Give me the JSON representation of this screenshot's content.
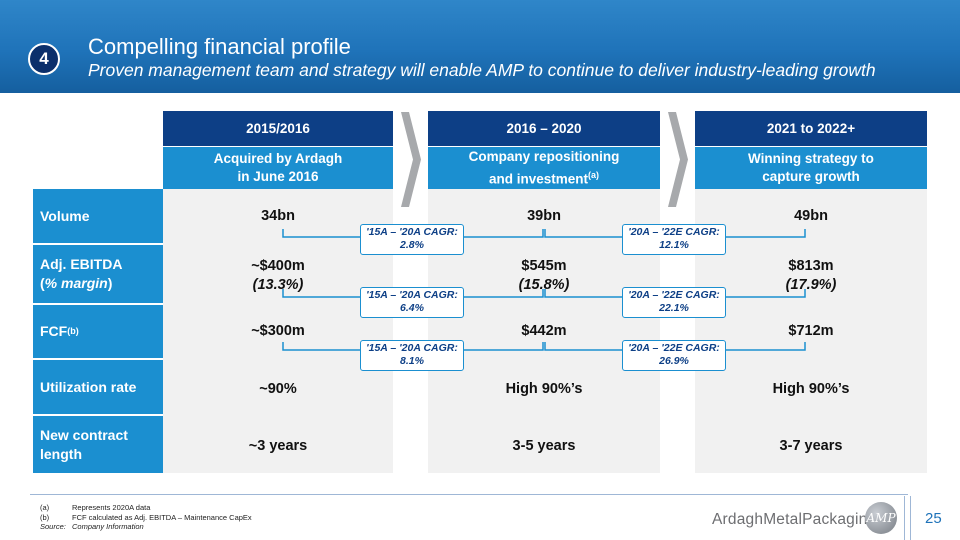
{
  "header": {
    "step_number": "4",
    "title": "Compelling financial profile",
    "subtitle": "Proven management team and strategy will enable AMP to continue to deliver industry-leading growth"
  },
  "columns": [
    {
      "period": "2015/2016",
      "desc_line1": "Acquired by Ardagh",
      "desc_line2": "in June 2016",
      "desc_sup": ""
    },
    {
      "period": "2016 – 2020",
      "desc_line1": "Company repositioning",
      "desc_line2": "and investment",
      "desc_sup": "(a)"
    },
    {
      "period": "2021 to 2022+",
      "desc_line1": "Winning strategy to",
      "desc_line2": "capture growth",
      "desc_sup": ""
    }
  ],
  "rows": {
    "volume": {
      "label": "Volume",
      "values": [
        "34bn",
        "39bn",
        "49bn"
      ]
    },
    "ebitda": {
      "label_line1": "Adj. EBITDA",
      "label_line2_pre": "(",
      "label_line2_italic": "% margin",
      "label_line2_post": ")",
      "values": [
        "~$400m",
        "$545m",
        "$813m"
      ],
      "margins": [
        "(13.3%)",
        "(15.8%)",
        "(17.9%)"
      ]
    },
    "fcf": {
      "label": "FCF",
      "label_sup": "(b)",
      "values": [
        "~$300m",
        "$442m",
        "$712m"
      ]
    },
    "utilization": {
      "label": "Utilization rate",
      "values": [
        "~90%",
        "High 90%’s",
        "High 90%’s"
      ]
    },
    "contract": {
      "label_line1": "New contract",
      "label_line2": "length",
      "values": [
        "~3 years",
        "3-5 years",
        "3-7 years"
      ]
    }
  },
  "cagr": {
    "volume": [
      {
        "label": "'15A – '20A CAGR:",
        "value": "2.8%"
      },
      {
        "label": "'20A – '22E CAGR:",
        "value": "12.1%"
      }
    ],
    "ebitda": [
      {
        "label": "'15A – '20A CAGR:",
        "value": "6.4%"
      },
      {
        "label": "'20A – '22E CAGR:",
        "value": "22.1%"
      }
    ],
    "fcf": [
      {
        "label": "'15A – '20A CAGR:",
        "value": "8.1%"
      },
      {
        "label": "'20A – '22E CAGR:",
        "value": "26.9%"
      }
    ]
  },
  "footnotes": [
    {
      "mark": "(a)",
      "text": "Represents 2020A data"
    },
    {
      "mark": "(b)",
      "text": "FCF calculated as Adj. EBITDA – Maintenance CapEx"
    },
    {
      "mark": "Source:",
      "text": "Company Information"
    }
  ],
  "footer": {
    "logo_word1": "Ardagh",
    "logo_word2": "MetalPackaging",
    "logo_mark": "AMP",
    "page_number": "25"
  },
  "colors": {
    "header_blue": "#1f73b9",
    "navy": "#0d3f86",
    "label_blue": "#1b8fd0",
    "cell_grey": "#f1f1f1",
    "arrow_grey": "#a7a9ac"
  }
}
